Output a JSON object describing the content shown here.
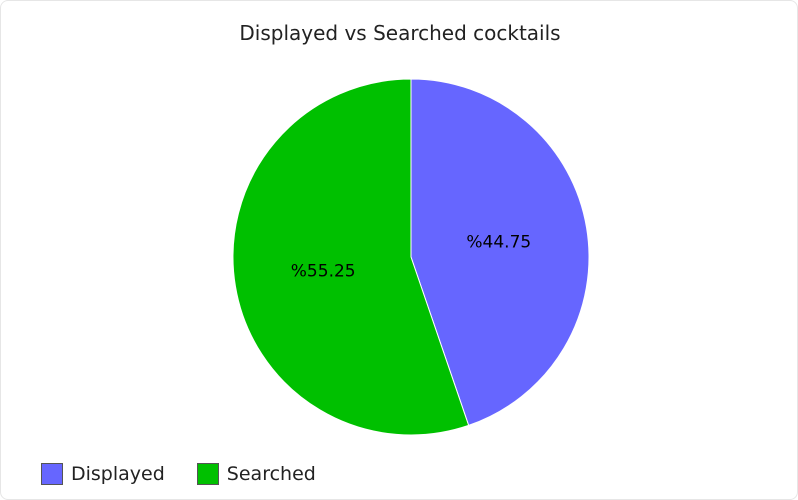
{
  "chart_data": {
    "type": "pie",
    "title": "Displayed vs Searched cocktails",
    "slices": [
      {
        "name": "Displayed",
        "value": 44.75,
        "label": "%44.75",
        "color": "#6666ff"
      },
      {
        "name": "Searched",
        "value": 55.25,
        "label": "%55.25",
        "color": "#00c000"
      }
    ],
    "start": "12 o'clock",
    "direction": "clockwise",
    "legend": "bottom-left"
  }
}
